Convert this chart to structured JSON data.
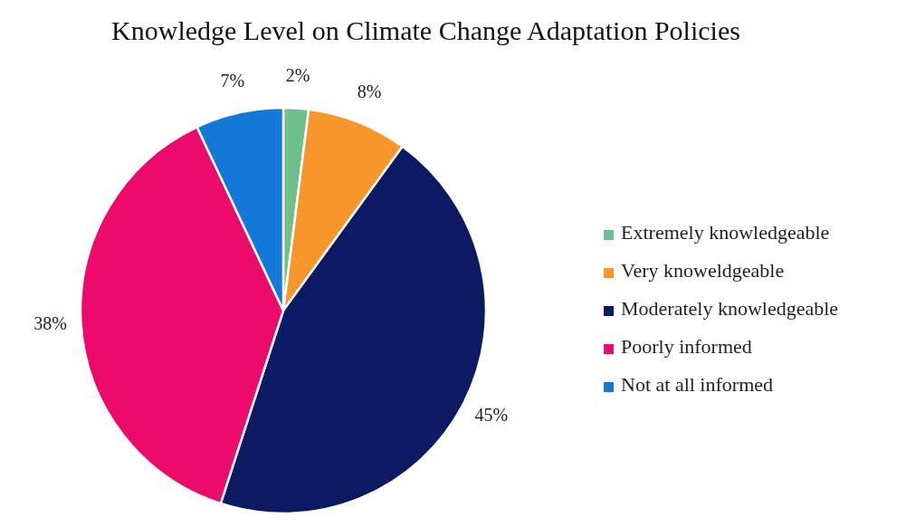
{
  "chart_data": {
    "type": "pie",
    "title": "Knowledge Level on Climate Change Adaptation Policies",
    "categories": [
      "Extremely knowledgeable",
      "Very knoweldgeable",
      "Moderately knowledgeable",
      "Poorly informed",
      "Not at all informed"
    ],
    "values": [
      2,
      8,
      45,
      38,
      7
    ],
    "value_labels": [
      "2%",
      "8%",
      "45%",
      "38%",
      "7%"
    ],
    "colors": [
      "#6dbf8b",
      "#f7962b",
      "#0c1a63",
      "#ec0b6b",
      "#1478d8"
    ],
    "legend": "right"
  }
}
